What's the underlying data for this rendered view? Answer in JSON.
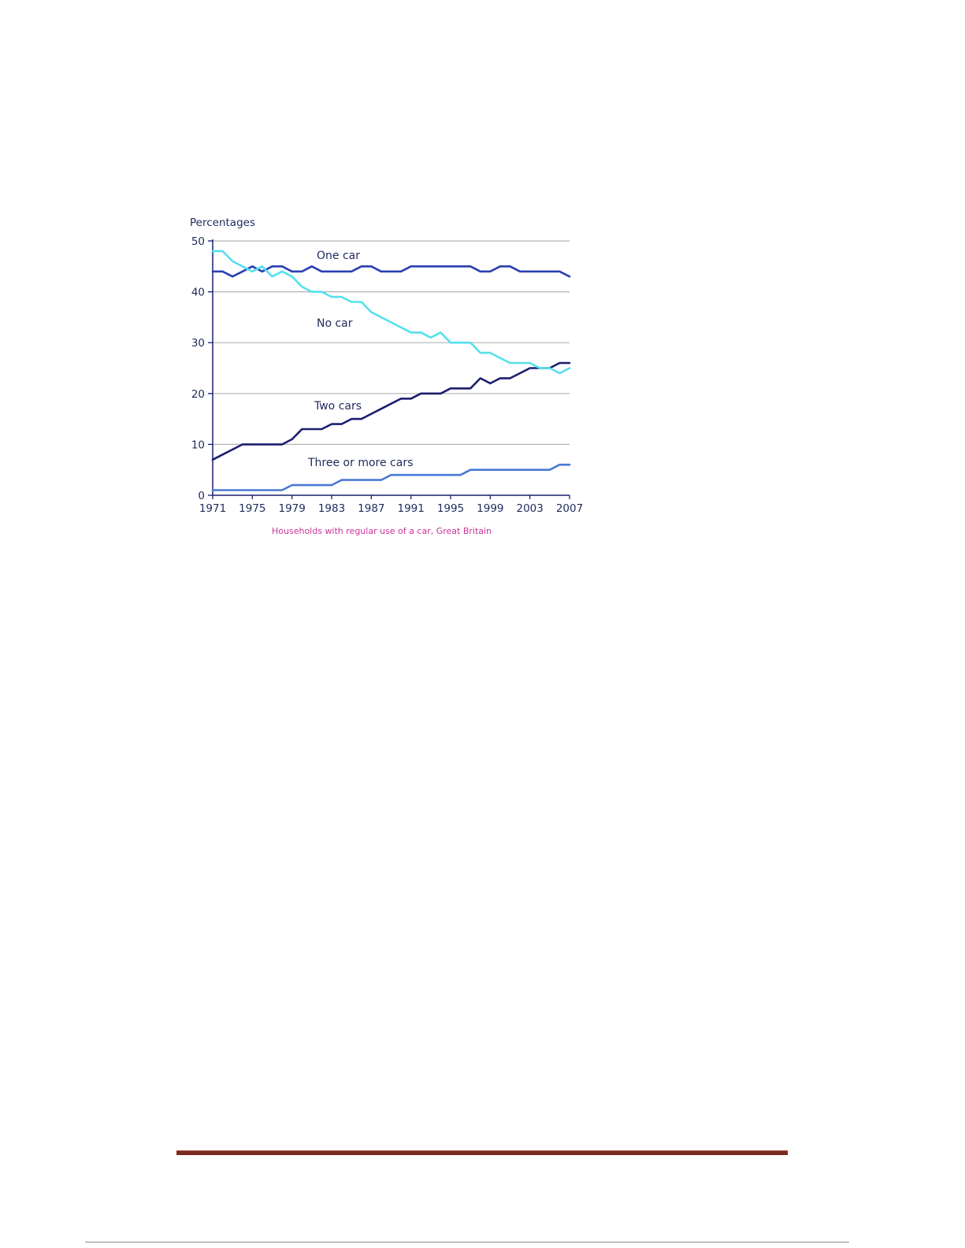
{
  "chart_data": {
    "type": "line",
    "ylabel": "Percentages",
    "caption": "Households with regular use of a car, Great Britain",
    "ylim": [
      0,
      50
    ],
    "xlim": [
      1971,
      2007
    ],
    "yticks": [
      0,
      10,
      20,
      30,
      40,
      50
    ],
    "xticks": [
      1971,
      1975,
      1979,
      1983,
      1987,
      1991,
      1995,
      1999,
      2003,
      2007
    ],
    "grid": "horizontal",
    "x": [
      1971,
      1972,
      1973,
      1974,
      1975,
      1976,
      1977,
      1978,
      1979,
      1980,
      1981,
      1982,
      1983,
      1984,
      1985,
      1986,
      1987,
      1988,
      1989,
      1990,
      1991,
      1992,
      1993,
      1994,
      1995,
      1996,
      1997,
      1998,
      1999,
      2000,
      2001,
      2002,
      2003,
      2004,
      2005,
      2006,
      2007
    ],
    "series": [
      {
        "name": "One car",
        "color": "#2b3fb0",
        "values": [
          44,
          44,
          43,
          44,
          45,
          44,
          45,
          45,
          44,
          44,
          45,
          44,
          44,
          44,
          44,
          45,
          45,
          44,
          44,
          44,
          45,
          45,
          45,
          45,
          45,
          45,
          45,
          44,
          44,
          45,
          45,
          44,
          44,
          44,
          44,
          44,
          43
        ]
      },
      {
        "name": "No car",
        "color": "#55e0ee",
        "values": [
          48,
          48,
          46,
          45,
          44,
          45,
          43,
          44,
          43,
          41,
          40,
          40,
          39,
          39,
          38,
          38,
          36,
          35,
          34,
          33,
          32,
          32,
          31,
          32,
          30,
          30,
          30,
          28,
          28,
          27,
          26,
          26,
          26,
          25,
          25,
          24,
          25
        ]
      },
      {
        "name": "Two cars",
        "color": "#1a1f6e",
        "values": [
          7,
          8,
          9,
          10,
          10,
          10,
          10,
          10,
          11,
          13,
          13,
          13,
          14,
          14,
          15,
          15,
          16,
          17,
          18,
          19,
          19,
          20,
          20,
          20,
          21,
          21,
          21,
          23,
          22,
          23,
          23,
          24,
          25,
          25,
          25,
          26,
          26
        ]
      },
      {
        "name": "Three or more cars",
        "color": "#4a78d6",
        "values": [
          1,
          1,
          1,
          1,
          1,
          1,
          1,
          1,
          2,
          2,
          2,
          2,
          2,
          3,
          3,
          3,
          3,
          3,
          4,
          4,
          4,
          4,
          4,
          4,
          4,
          4,
          5,
          5,
          5,
          5,
          5,
          5,
          5,
          5,
          5,
          6,
          6
        ]
      }
    ]
  },
  "colors": {
    "grid": "#b3b3b3",
    "axis": "#1a1f6e",
    "footer_rule": "#7b2a20",
    "bottom_rule": "#8c8c8c"
  }
}
